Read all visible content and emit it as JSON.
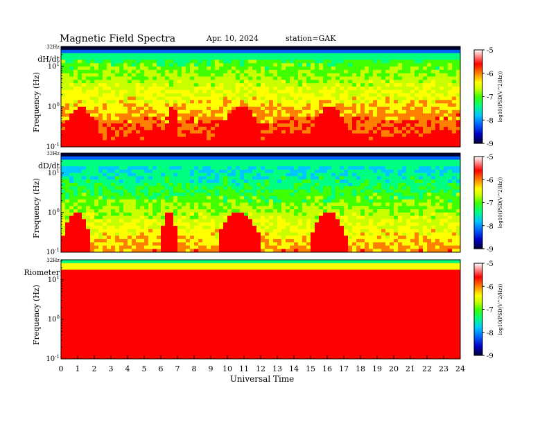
{
  "header": {
    "title": "Magnetic  Field  Spectra",
    "date": "Apr. 10, 2024",
    "station": "station=GAK"
  },
  "colors": {
    "colormap": [
      "#000033",
      "#0000c8",
      "#0060ff",
      "#00c8ff",
      "#00ff80",
      "#40ff00",
      "#c8ff00",
      "#ffff00",
      "#ff8000",
      "#ff0000",
      "#ffffff"
    ]
  },
  "chart_data": [
    {
      "type": "heatmap",
      "panel_label": "dH/dt",
      "ylabel": "Frequency (Hz)",
      "y_scale": "log",
      "ylim": [
        0.1,
        32
      ],
      "y_ticks": [
        {
          "value": 32,
          "label": "32Hz"
        },
        {
          "value": 10,
          "label": "10^1"
        },
        {
          "value": 1,
          "label": "10^0"
        },
        {
          "value": 0.1,
          "label": "10^-1"
        }
      ],
      "xlim": [
        0,
        24
      ],
      "colorbar": {
        "label": "log10(PSD(V^2/Hz))",
        "range": [
          -9,
          -5
        ],
        "ticks": [
          -5,
          -6,
          -7,
          -8,
          -9
        ]
      },
      "white_regions_utc": [
        [
          0.1,
          2.2
        ],
        [
          6.3,
          7.1
        ],
        [
          9.5,
          12.1
        ],
        [
          15.0,
          17.3
        ]
      ]
    },
    {
      "type": "heatmap",
      "panel_label": "dD/dt",
      "ylabel": "Frequency (Hz)",
      "y_scale": "log",
      "ylim": [
        0.1,
        32
      ],
      "y_ticks": [
        {
          "value": 32,
          "label": "32Hz"
        },
        {
          "value": 10,
          "label": "10^1"
        },
        {
          "value": 1,
          "label": "10^0"
        },
        {
          "value": 0.1,
          "label": "10^-1"
        }
      ],
      "xlim": [
        0,
        24
      ],
      "colorbar": {
        "label": "log10(PSD(V^2/Hz))",
        "range": [
          -9,
          -5
        ],
        "ticks": [
          -5,
          -6,
          -7,
          -8,
          -9
        ]
      },
      "white_regions_utc": [
        [
          0.1,
          1.8
        ],
        [
          6.0,
          7.0
        ],
        [
          9.4,
          12.0
        ],
        [
          15.0,
          17.2
        ]
      ]
    },
    {
      "type": "heatmap",
      "panel_label": "Riometer",
      "ylabel": "Frequency (Hz)",
      "y_scale": "log",
      "ylim": [
        0.1,
        32
      ],
      "y_ticks": [
        {
          "value": 32,
          "label": "32Hz"
        },
        {
          "value": 10,
          "label": "10^1"
        },
        {
          "value": 1,
          "label": "10^0"
        },
        {
          "value": 0.1,
          "label": "10^-1"
        }
      ],
      "xlim": [
        0,
        24
      ],
      "colorbar": {
        "label": "log10(PSD(V^2/Hz))",
        "range": [
          -9,
          -5
        ],
        "ticks": [
          -5,
          -6,
          -7,
          -8,
          -9
        ]
      }
    }
  ],
  "x_axis": {
    "label": "Universal Time",
    "ticks": [
      "0",
      "1",
      "2",
      "3",
      "4",
      "5",
      "6",
      "7",
      "8",
      "9",
      "10",
      "11",
      "12",
      "13",
      "14",
      "15",
      "16",
      "17",
      "18",
      "19",
      "20",
      "21",
      "22",
      "23",
      "24"
    ]
  }
}
